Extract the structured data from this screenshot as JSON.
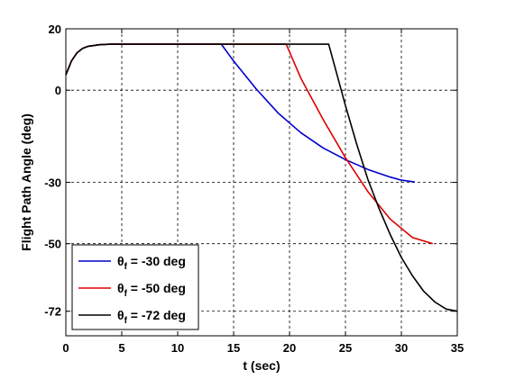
{
  "chart_data": {
    "type": "line",
    "xlabel": "t (sec)",
    "ylabel": "Flight Path Angle (deg)",
    "xlim": [
      0,
      35
    ],
    "ylim": [
      -80,
      20
    ],
    "xticks": [
      0,
      5,
      10,
      15,
      20,
      25,
      30,
      35
    ],
    "yticks": [
      20,
      0,
      -30,
      -50,
      -72
    ],
    "grid": true,
    "legend_position": "bottom-left",
    "series": [
      {
        "name": "θf = -30 deg",
        "legend_symbol": "θ",
        "legend_sub": "f",
        "legend_rest": " = -30 deg",
        "color": "#0000cc",
        "x": [
          0,
          0.5,
          1,
          1.5,
          2,
          3,
          4,
          5,
          8,
          11,
          13.9,
          15,
          17,
          19,
          21,
          23,
          25,
          27,
          29,
          30,
          31.2
        ],
        "y": [
          5,
          9.5,
          12.2,
          13.6,
          14.3,
          14.8,
          15,
          15,
          15,
          15,
          15,
          9.5,
          0.5,
          -7.5,
          -13.8,
          -18.8,
          -22.6,
          -25.8,
          -28.3,
          -29.3,
          -29.9
        ]
      },
      {
        "name": "θf = -50 deg",
        "legend_symbol": "θ",
        "legend_sub": "f",
        "legend_rest": " = -50 deg",
        "color": "#dd0000",
        "x": [
          0,
          0.5,
          1,
          1.5,
          2,
          3,
          4,
          5,
          8,
          12,
          16,
          19.7,
          21,
          23,
          25,
          27,
          29,
          31,
          32.8
        ],
        "y": [
          5,
          9.5,
          12.2,
          13.6,
          14.3,
          14.8,
          15,
          15,
          15,
          15,
          15,
          15,
          4,
          -9.5,
          -22,
          -33,
          -42,
          -48,
          -50
        ]
      },
      {
        "name": "θf = -72 deg",
        "legend_symbol": "θ",
        "legend_sub": "f",
        "legend_rest": " = -72 deg",
        "color": "#000000",
        "x": [
          0,
          0.5,
          1,
          1.5,
          2,
          3,
          4,
          5,
          8,
          12,
          16,
          20,
          23.5,
          25,
          26,
          27,
          28,
          29,
          30,
          31,
          32,
          33,
          34,
          35
        ],
        "y": [
          5,
          9.5,
          12.2,
          13.6,
          14.3,
          14.8,
          15,
          15,
          15,
          15,
          15,
          15,
          15,
          -5,
          -17.5,
          -29,
          -38.5,
          -47,
          -54.5,
          -60.5,
          -65.5,
          -69,
          -71.3,
          -72
        ]
      }
    ]
  }
}
